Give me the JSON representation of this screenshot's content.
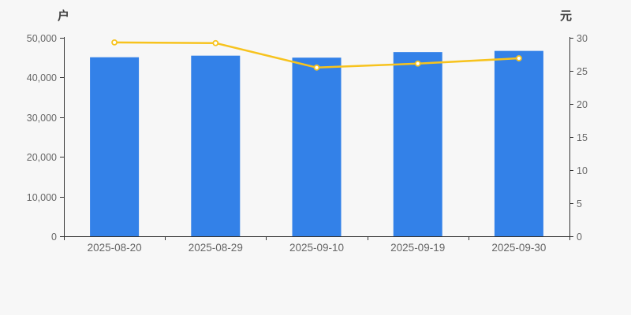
{
  "chart": {
    "background_color": "#f7f7f7",
    "axis_line_color": "#333333",
    "tick_label_color": "#666666",
    "bar_color": "#3381e8",
    "line_color": "#f7c31e",
    "marker_fill": "#ffffff"
  },
  "chart_data": {
    "type": "bar",
    "title": "",
    "categories": [
      "2025-08-20",
      "2025-08-29",
      "2025-09-10",
      "2025-09-19",
      "2025-09-30"
    ],
    "series": [
      {
        "type": "bar",
        "axis": "left",
        "values": [
          45100,
          45500,
          45000,
          46400,
          46700
        ],
        "color": "#3381e8"
      },
      {
        "type": "line",
        "axis": "right",
        "values": [
          29.3,
          29.2,
          25.5,
          26.1,
          26.9
        ],
        "color": "#f7c31e"
      }
    ],
    "left_axis": {
      "label": "户",
      "min": 0,
      "max": 50000,
      "tick_labels": [
        "0",
        "10,000",
        "20,000",
        "30,000",
        "40,000",
        "50,000"
      ]
    },
    "right_axis": {
      "label": "元",
      "min": 0,
      "max": 30,
      "tick_labels": [
        "0",
        "5",
        "10",
        "15",
        "20",
        "25",
        "30"
      ]
    },
    "grid": false,
    "legend": false
  }
}
